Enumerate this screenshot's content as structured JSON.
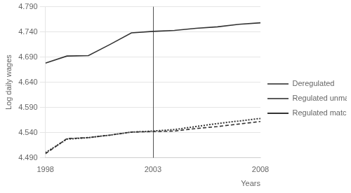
{
  "chart_data": {
    "type": "line",
    "x": [
      1998,
      1999,
      2000,
      2001,
      2002,
      2003,
      2004,
      2005,
      2006,
      2007,
      2008
    ],
    "series": [
      {
        "name": "Deregulated",
        "color": "#333333",
        "line_style": "dashed",
        "values": [
          4.498,
          4.528,
          4.53,
          4.535,
          4.541,
          4.542,
          4.543,
          4.548,
          4.552,
          4.557,
          4.562
        ]
      },
      {
        "name": "Regulated unmatched",
        "color": "#333333",
        "line_style": "solid",
        "values": [
          4.678,
          4.692,
          4.693,
          4.715,
          4.738,
          4.741,
          4.743,
          4.747,
          4.75,
          4.755,
          4.758
        ]
      },
      {
        "name": "Regulated matched",
        "color": "#333333",
        "line_style": "dotted",
        "values": [
          4.5,
          4.527,
          4.53,
          4.535,
          4.541,
          4.543,
          4.546,
          4.552,
          4.558,
          4.563,
          4.568
        ]
      }
    ],
    "vlines": [
      2003
    ],
    "xlabel": "Years",
    "ylabel": "Log daily wages",
    "xlim": [
      1998,
      2008
    ],
    "xticks": [
      1998,
      2003,
      2008
    ],
    "ylim": [
      4.49,
      4.79
    ],
    "yticks": [
      {
        "value": 4.49,
        "label": "4.490"
      },
      {
        "value": 4.54,
        "label": "4.540"
      },
      {
        "value": 4.59,
        "label": "4.590"
      },
      {
        "value": 4.64,
        "label": "4.640"
      },
      {
        "value": 4.69,
        "label": "4.690"
      },
      {
        "value": 4.74,
        "label": "4.740"
      },
      {
        "value": 4.79,
        "label": "4.790"
      }
    ],
    "grid": "y",
    "legend": "right"
  }
}
